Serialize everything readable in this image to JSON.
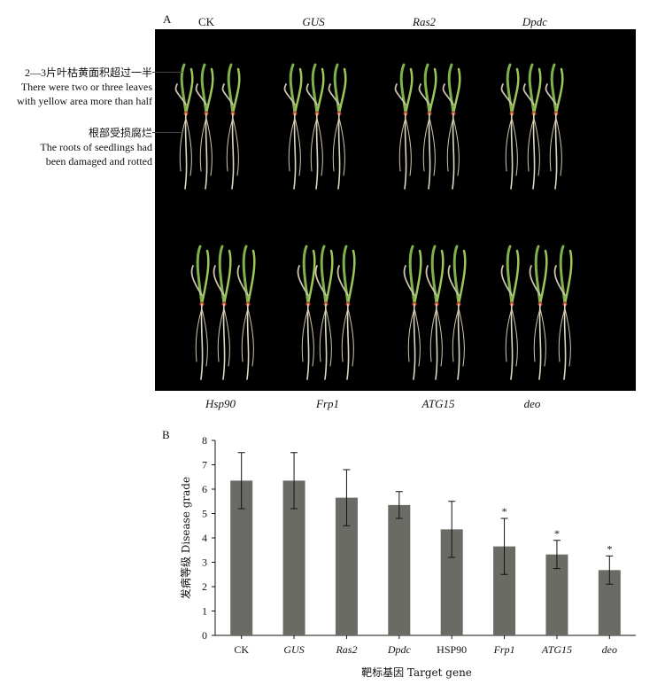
{
  "panel_a": {
    "letter": "A",
    "top_labels": [
      "CK",
      "GUS",
      "Ras2",
      "Dpdc"
    ],
    "bottom_labels": [
      "Hsp90",
      "Frp1",
      "ATG15",
      "deo"
    ],
    "annotation_leaves_cn": "2—3片叶枯黄面积超过一半",
    "annotation_leaves_en_1": "There were two or three leaves",
    "annotation_leaves_en_2": "with yellow area more than half",
    "annotation_roots_cn": "根部受损腐烂",
    "annotation_roots_en_1": "The roots of seedlings had",
    "annotation_roots_en_2": "been damaged and rotted"
  },
  "panel_b": {
    "letter": "B"
  },
  "chart_data": {
    "type": "bar",
    "categories": [
      "CK",
      "GUS",
      "Ras2",
      "Dpdc",
      "HSP90",
      "Frp1",
      "ATG15",
      "deo"
    ],
    "values": [
      6.35,
      6.35,
      5.65,
      5.35,
      4.35,
      3.65,
      3.32,
      2.68
    ],
    "errors": [
      1.15,
      1.15,
      1.15,
      0.55,
      1.15,
      1.15,
      0.58,
      0.58
    ],
    "significance": [
      "",
      "",
      "",
      "",
      "",
      "*",
      "*",
      "*"
    ],
    "italic_categories": [
      false,
      true,
      true,
      true,
      false,
      true,
      true,
      true
    ],
    "ylabel": "发病等级 Disease grade",
    "xlabel": "靶标基因 Target gene",
    "ylim": [
      0,
      8
    ],
    "yticks": [
      0,
      1,
      2,
      3,
      4,
      5,
      6,
      7,
      8
    ],
    "bar_color": "#6b6b66",
    "grid": false
  }
}
